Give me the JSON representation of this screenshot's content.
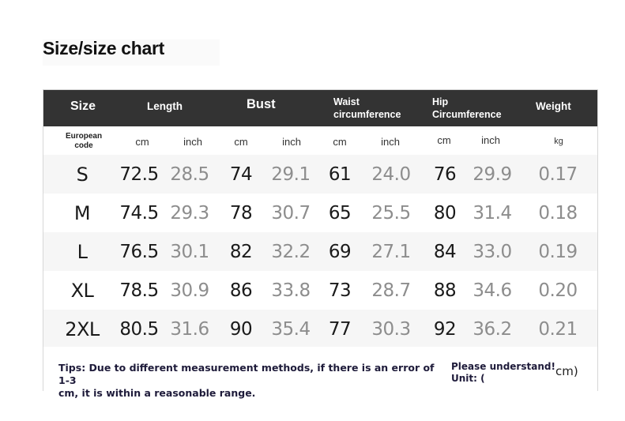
{
  "title": "Size/size chart",
  "header": {
    "size": "Size",
    "length": "Length",
    "bust": "Bust",
    "waist_line1": "Waist",
    "waist_line2": "circumference",
    "hip_line1": "Hip",
    "hip_line2": "Circumference",
    "weight": "Weight"
  },
  "units": {
    "code_line1": "European",
    "code_line2": "code",
    "cm": "cm",
    "inch": "inch",
    "kg": "kg"
  },
  "rows": [
    {
      "size": "S",
      "length_cm": "72.5",
      "length_in": "28.5",
      "bust_cm": "74",
      "bust_in": "29.1",
      "waist_cm": "61",
      "waist_in": "24.0",
      "hip_cm": "76",
      "hip_in": "29.9",
      "weight": "0.17"
    },
    {
      "size": "M",
      "length_cm": "74.5",
      "length_in": "29.3",
      "bust_cm": "78",
      "bust_in": "30.7",
      "waist_cm": "65",
      "waist_in": "25.5",
      "hip_cm": "80",
      "hip_in": "31.4",
      "weight": "0.18"
    },
    {
      "size": "L",
      "length_cm": "76.5",
      "length_in": "30.1",
      "bust_cm": "82",
      "bust_in": "32.2",
      "waist_cm": "69",
      "waist_in": "27.1",
      "hip_cm": "84",
      "hip_in": "33.0",
      "weight": "0.19"
    },
    {
      "size": "XL",
      "length_cm": "78.5",
      "length_in": "30.9",
      "bust_cm": "86",
      "bust_in": "33.8",
      "waist_cm": "73",
      "waist_in": "28.7",
      "hip_cm": "88",
      "hip_in": "34.6",
      "weight": "0.20"
    },
    {
      "size": "2XL",
      "length_cm": "80.5",
      "length_in": "31.6",
      "bust_cm": "90",
      "bust_in": "35.4",
      "waist_cm": "77",
      "waist_in": "30.3",
      "hip_cm": "92",
      "hip_in": "36.2",
      "weight": "0.21"
    }
  ],
  "footer": {
    "tips_line1": "Tips: Due to different measurement methods, if there is an error of 1-3",
    "tips_line2": "cm, it is within a reasonable range.",
    "please_line1": "Please understand!",
    "please_line2": "Unit: (",
    "cm_close": "cm)"
  },
  "colors": {
    "header_bg": "#333333",
    "header_text": "#ffffff",
    "row_shade": "#f6f6f6",
    "cm_value": "#1a1a1a",
    "inch_value": "#8d8d8d",
    "tips_text": "#1e1b3a"
  }
}
